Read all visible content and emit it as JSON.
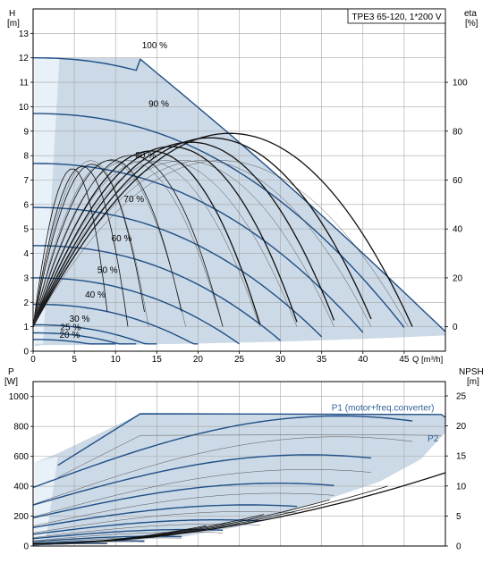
{
  "colors": {
    "background": "#ffffff",
    "frame": "#000000",
    "grid": "#a7a7a7",
    "region_fill": "#ccd9e6",
    "region_light": "#e8f0f8",
    "curve_blue": "#1f4f86",
    "curve_black": "#111111",
    "label_blue": "#2d5f97"
  },
  "chart_data": [
    {
      "type": "line",
      "title": "TPE3 65-120, 1*200 V",
      "ylabel": "H\n[m]",
      "ylabel_right": "eta\n[%]",
      "xlabel": "Q [m³/h]",
      "xlim": [
        0,
        50
      ],
      "ylim": [
        0,
        14
      ],
      "y2lim": [
        0,
        100
      ],
      "grid": true,
      "x_ticks": [
        0,
        5,
        10,
        15,
        20,
        25,
        30,
        35,
        40,
        45
      ],
      "y_ticks": [
        0,
        1,
        2,
        3,
        4,
        5,
        6,
        7,
        8,
        9,
        10,
        11,
        12,
        13
      ],
      "y2_ticks": [
        0,
        20,
        40,
        60,
        80,
        100
      ],
      "y2_offset_m": 1,
      "speed_labels": [
        {
          "text": "100 %",
          "x": 13.2,
          "y": 12.4
        },
        {
          "text": "90 %",
          "x": 14.0,
          "y": 10.0
        },
        {
          "text": "80 %",
          "x": 12.4,
          "y": 7.9
        },
        {
          "text": "70 %",
          "x": 11.0,
          "y": 6.1
        },
        {
          "text": "60 %",
          "x": 9.5,
          "y": 4.5
        },
        {
          "text": "50 %",
          "x": 7.8,
          "y": 3.2
        },
        {
          "text": "40 %",
          "x": 6.3,
          "y": 2.2
        },
        {
          "text": "30 %",
          "x": 4.4,
          "y": 1.2
        },
        {
          "text": "25 %",
          "x": 3.3,
          "y": 0.85
        },
        {
          "text": "20 %",
          "x": 3.2,
          "y": 0.55
        }
      ],
      "series": [
        {
          "pct": 100,
          "q_max": 50.0,
          "q_end": 12.8
        },
        {
          "pct": 90,
          "q_max": 45.0,
          "q_end": 45.0
        },
        {
          "pct": 80,
          "q_max": 40.0,
          "q_end": 40.0
        },
        {
          "pct": 70,
          "q_max": 35.0,
          "q_end": 35.0
        },
        {
          "pct": 60,
          "q_max": 30.0,
          "q_end": 30.0
        },
        {
          "pct": 50,
          "q_max": 25.0,
          "q_end": 25.0
        },
        {
          "pct": 40,
          "q_max": 20.0,
          "q_end": 20.0
        },
        {
          "pct": 30,
          "q_max": 15.0,
          "q_end": 15.0
        },
        {
          "pct": 25,
          "q_max": 12.5,
          "q_end": 12.5
        },
        {
          "pct": 20,
          "q_max": 10.0,
          "q_end": 10.0
        }
      ]
    },
    {
      "type": "line",
      "ylabel": "P\n[W]",
      "ylabel_right": "NPSH\n[m]",
      "xlim": [
        0,
        50
      ],
      "ylim": [
        0,
        1100
      ],
      "y2lim": [
        0,
        25
      ],
      "grid": true,
      "y_ticks": [
        0,
        200,
        400,
        600,
        800,
        1000
      ],
      "y2_ticks": [
        0,
        5,
        10,
        15,
        20,
        25
      ],
      "legend_labels": [
        {
          "text": "P1 (motor+freq.converter)",
          "x": 36.2,
          "y": 905
        },
        {
          "text": "P2",
          "x": 48.5,
          "y": 700
        }
      ],
      "p1_curves": [
        {
          "pct": 100,
          "peak": 870
        },
        {
          "pct": 90,
          "peak": 610
        },
        {
          "pct": 80,
          "peak": 420
        },
        {
          "pct": 70,
          "peak": 275
        },
        {
          "pct": 60,
          "peak": 175
        },
        {
          "pct": 50,
          "peak": 110
        },
        {
          "pct": 40,
          "peak": 65
        },
        {
          "pct": 30,
          "peak": 35
        },
        {
          "pct": 20,
          "peak": 18
        }
      ],
      "npsh": {
        "y0": 0.4,
        "y_end": 12.2
      }
    }
  ]
}
